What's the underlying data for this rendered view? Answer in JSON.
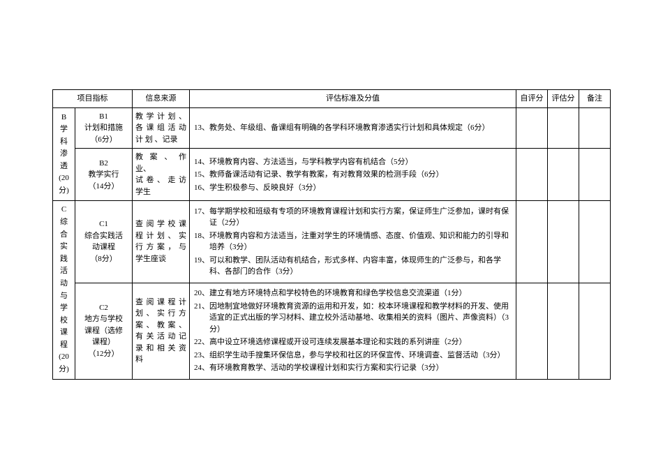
{
  "table": {
    "head": {
      "project": "项目指标",
      "source": "信息来源",
      "criteria": "评估标准及分值",
      "self": "自评分",
      "eval": "评估分",
      "note": "备注"
    },
    "rows": {
      "b": {
        "cat": "B\n学\n科\n渗\n透\n(20分)",
        "r1": {
          "ind": "B1\n计划和措施\n（6分）",
          "src": "教 学 计 划 、各 课 组 活 动计 划 、记录",
          "crit": [
            {
              "n": "13、",
              "t": "教务处、年级组、备课组有明确的各学科环境教育渗透实行计划和具体规定（6分）"
            }
          ]
        },
        "r2": {
          "ind": "B2\n教学实行\n（14分）",
          "src": "教 案 、 作业、\n试 卷 、 走 访学生",
          "crit": [
            {
              "n": "14、",
              "t": "环境教育内容、方法适当，与学科教学内容有机结合（5分）"
            },
            {
              "n": "15、",
              "t": "教师备课活动有记录、教学有教案，有对教育效果的检测手段（6分）"
            },
            {
              "n": "16、",
              "t": "学生积极参与、反映良好（3分）"
            }
          ]
        }
      },
      "c": {
        "cat": "C\n综\n合\n实\n践\n活\n动\n与\n学\n校\n课\n程\n(20分)",
        "r1": {
          "ind": "C1\n综合实践活\n动课程\n（8分）",
          "src": "查 阅 学 校 课程 计 划 、 实行 方 案 ， 与学生座谈",
          "crit": [
            {
              "n": "17、",
              "t": "每学期学校和班级有专项的环境教育课程计划和实行方案，保证师生广泛参加，课时有保证（2分）"
            },
            {
              "n": "18、",
              "t": "环境教育内容和方法适当，注重对学生的环境情感、态度、价值观、知识和能力的引导和培养（3分）"
            },
            {
              "n": "19、",
              "t": "可以和教学、团队活动有机结合，形式多样、内容丰富，体现师生的广泛参与，和各学科、各部门的合作（3分）"
            }
          ]
        },
        "r2": {
          "ind": "C2\n地方与学校\n课程（选修\n课程）\n（12分）",
          "src": "查 阅 课 程 计划 、 实 行 方案 、 教 案 、有 关 活 动 记录 和 相 关 资料",
          "crit": [
            {
              "n": "20、",
              "t": "建立有地方环境特点和学校特色的环境教育和绿色学校信息交流渠道（1分）"
            },
            {
              "n": "21、",
              "t": "因地制宜地做好环境教育资源的运用和开发，如：校本环境课程和教学材料的开发、使用适宜的正式出版的学习材料、建立校外活动基地、收集相关的资料（图片、声像资料）（3分）"
            },
            {
              "n": "22、",
              "t": "高中设立环境选修课程或开设可连续发展基本理论和实践的系列讲座（2分）"
            },
            {
              "n": "23、",
              "t": "组织学生动手搜集环保信息，参与学校和社区的环保宣传、环境调查、监督活动（3分）"
            },
            {
              "n": "24、",
              "t": "有环境教育教学、活动的学校课程计划和实行方案和实行记录（3分）"
            }
          ]
        }
      }
    },
    "style": {
      "border_color": "#000000",
      "background": "#ffffff",
      "font_size_pt": 8,
      "font_family": "SimSun",
      "line_height": 1.5
    }
  }
}
